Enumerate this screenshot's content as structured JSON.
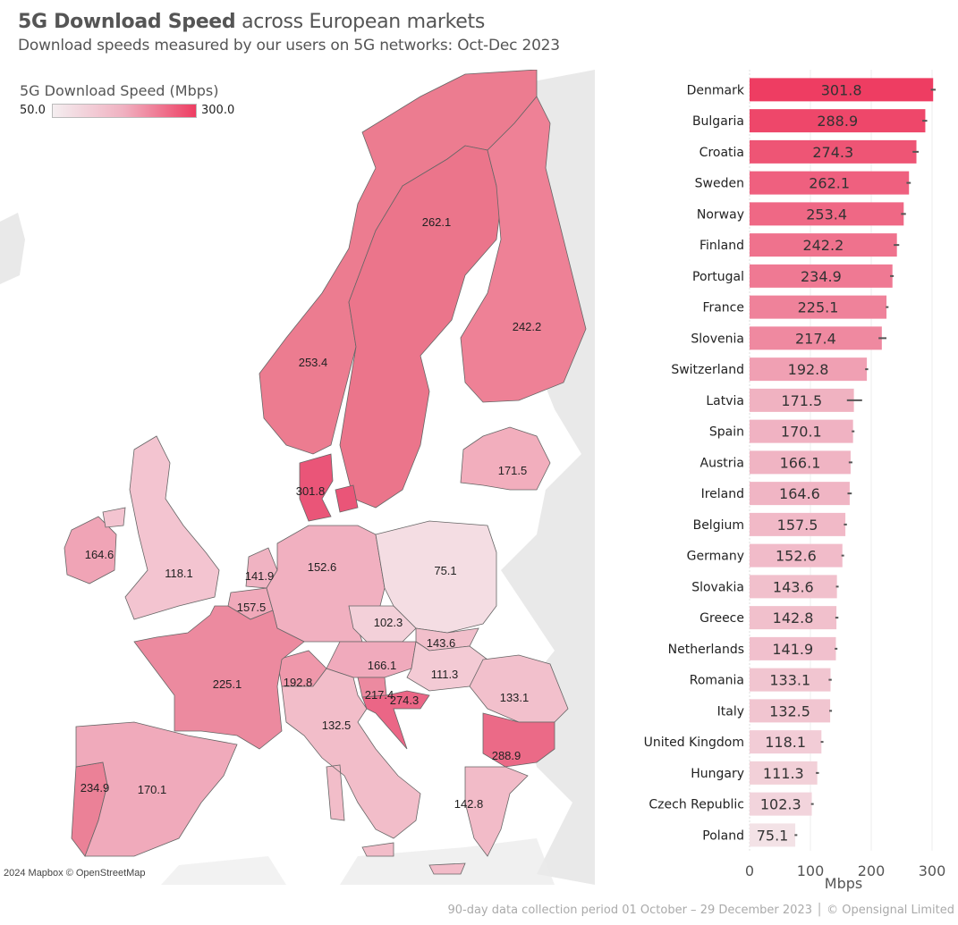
{
  "header": {
    "title_bold": "5G Download Speed",
    "title_rest": " across European markets",
    "subtitle": "Download speeds measured by our users on 5G networks: Oct-Dec 2023"
  },
  "legend": {
    "title": "5G Download Speed (Mbps)",
    "min_label": "50.0",
    "max_label": "300.0",
    "min_value": 50,
    "max_value": 300,
    "color_low": "#f4eef0",
    "color_high": "#ee3d62"
  },
  "map": {
    "attribution": "2024 Mapbox © OpenStreetMap",
    "labels": [
      {
        "country": "Norway",
        "text": "253.4"
      },
      {
        "country": "Sweden",
        "text": "262.1"
      },
      {
        "country": "Finland",
        "text": "242.2"
      },
      {
        "country": "Denmark",
        "text": "301.8"
      },
      {
        "country": "Latvia",
        "text": "171.5"
      },
      {
        "country": "Ireland",
        "text": "164.6"
      },
      {
        "country": "United Kingdom",
        "text": "118.1"
      },
      {
        "country": "Netherlands",
        "text": "141.9"
      },
      {
        "country": "Belgium",
        "text": "157.5"
      },
      {
        "country": "Germany",
        "text": "152.6"
      },
      {
        "country": "Poland",
        "text": "75.1"
      },
      {
        "country": "Czech Republic",
        "text": "102.3"
      },
      {
        "country": "Slovakia",
        "text": "143.6"
      },
      {
        "country": "Austria",
        "text": "166.1"
      },
      {
        "country": "Hungary",
        "text": "111.3"
      },
      {
        "country": "Switzerland",
        "text": "192.8"
      },
      {
        "country": "Slovenia",
        "text": "217.4"
      },
      {
        "country": "Croatia",
        "text": "274.3"
      },
      {
        "country": "Romania",
        "text": "133.1"
      },
      {
        "country": "France",
        "text": "225.1"
      },
      {
        "country": "Italy",
        "text": "132.5"
      },
      {
        "country": "Bulgaria",
        "text": "288.9"
      },
      {
        "country": "Portugal",
        "text": "234.9"
      },
      {
        "country": "Spain",
        "text": "170.1"
      },
      {
        "country": "Greece",
        "text": "142.8"
      }
    ]
  },
  "chart_data": {
    "type": "bar",
    "orientation": "horizontal",
    "title": "5G Download Speed across European markets",
    "subtitle": "Download speeds measured by our users on 5G networks: Oct-Dec 2023",
    "xlabel": "Mbps",
    "ylabel": "",
    "xlim": [
      0,
      310
    ],
    "xticks": [
      0,
      100,
      200,
      300
    ],
    "xtick_labels": [
      "0",
      "100",
      "200",
      "300"
    ],
    "grid": true,
    "categories": [
      "Denmark",
      "Bulgaria",
      "Croatia",
      "Sweden",
      "Norway",
      "Finland",
      "Portugal",
      "France",
      "Slovenia",
      "Switzerland",
      "Latvia",
      "Spain",
      "Austria",
      "Ireland",
      "Belgium",
      "Germany",
      "Slovakia",
      "Greece",
      "Netherlands",
      "Romania",
      "Italy",
      "United Kingdom",
      "Hungary",
      "Czech Republic",
      "Poland"
    ],
    "values": [
      301.8,
      288.9,
      274.3,
      262.1,
      253.4,
      242.2,
      234.9,
      225.1,
      217.4,
      192.8,
      171.5,
      170.1,
      166.1,
      164.6,
      157.5,
      152.6,
      143.6,
      142.8,
      141.9,
      133.1,
      132.5,
      118.1,
      111.3,
      102.3,
      75.1
    ],
    "value_labels": [
      "301.8",
      "288.9",
      "274.3",
      "262.1",
      "253.4",
      "242.2",
      "234.9",
      "225.1",
      "217.4",
      "192.8",
      "171.5",
      "170.1",
      "166.1",
      "164.6",
      "157.5",
      "152.6",
      "143.6",
      "142.8",
      "141.9",
      "133.1",
      "132.5",
      "118.1",
      "111.3",
      "102.3",
      "75.1"
    ],
    "error_lower": [
      298,
      284,
      268,
      258,
      249,
      237,
      231,
      224,
      212,
      190,
      160,
      168,
      163,
      161,
      155,
      151,
      142,
      141,
      140,
      130,
      131,
      117,
      109,
      101,
      74
    ],
    "error_upper": [
      306,
      292,
      278,
      265,
      257,
      246,
      237,
      226,
      225,
      195,
      185,
      172,
      169,
      168,
      160,
      154,
      146,
      146,
      144,
      135,
      134,
      119,
      114,
      104,
      76
    ]
  },
  "footer": {
    "text": "90-day data collection period 01 October – 29 December 2023 │  © Opensignal Limited"
  }
}
